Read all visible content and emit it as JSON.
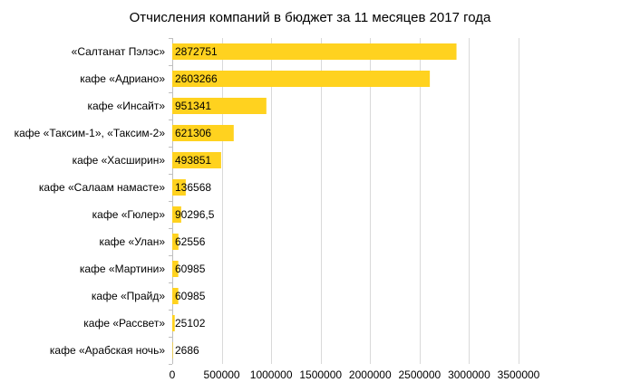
{
  "chart_data": {
    "type": "bar",
    "orientation": "horizontal",
    "title": "Отчисления компаний в бюджет за 11 месяцев 2017 года",
    "categories": [
      "«Салтанат Пэлэс»",
      "кафе «Адриано»",
      "кафе «Инсайт»",
      "кафе «Таксим-1», «Таксим-2»",
      "кафе «Хасширин»",
      "кафе «Салаам намасте»",
      "кафе «Гюлер»",
      "кафе «Улан»",
      "кафе «Мартини»",
      "кафе «Прайд»",
      "кафе «Рассвет»",
      "кафе «Арабская ночь»"
    ],
    "values": [
      2872751,
      2603266,
      951341,
      621306,
      493851,
      136568,
      90296.5,
      62556,
      60985,
      60985,
      25102,
      2686
    ],
    "data_labels": [
      "2872751",
      "2603266",
      "951341",
      "621306",
      "493851",
      "136568",
      "90296,5",
      "62556",
      "60985",
      "60985",
      "25102",
      "2686"
    ],
    "xlim": [
      0,
      3500000
    ],
    "xticks": [
      0,
      500000,
      1000000,
      1500000,
      2000000,
      2500000,
      3000000,
      3500000
    ],
    "xtick_labels": [
      "0",
      "500000",
      "1000000",
      "1500000",
      "2000000",
      "2500000",
      "3000000",
      "3500000"
    ],
    "grid": "vertical",
    "legend": "none",
    "colors": {
      "bar": "#FFD21F",
      "grid": "#D9D9D9",
      "axis": "#BFBFBF",
      "text": "#000000"
    }
  }
}
